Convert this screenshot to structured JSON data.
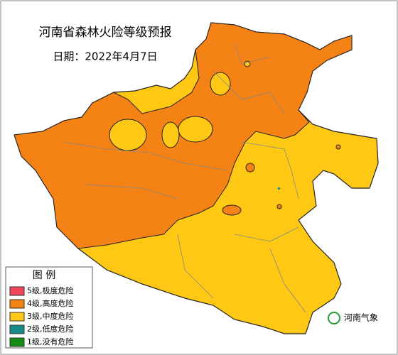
{
  "header": {
    "title": "河南省森林火险等级预报",
    "date": "日期：2022年4月7日"
  },
  "legend": {
    "title": "图 例",
    "items": [
      {
        "label": "5级,极度危险",
        "color": "#f0465a"
      },
      {
        "label": "4级,高度危险",
        "color": "#f58214"
      },
      {
        "label": "3级,中度危险",
        "color": "#ffc814"
      },
      {
        "label": "2级,低度危险",
        "color": "#178a8a"
      },
      {
        "label": "1级,没有危险",
        "color": "#128c14"
      }
    ]
  },
  "watermark": "河南气象"
}
